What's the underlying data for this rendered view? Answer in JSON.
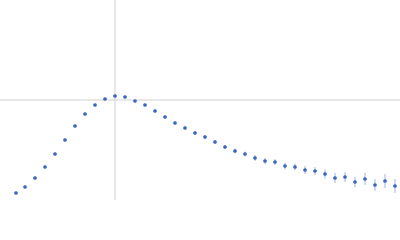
{
  "chart_data": {
    "type": "scatter",
    "x": [
      0.16,
      0.25,
      0.35,
      0.45,
      0.55,
      0.65,
      0.75,
      0.85,
      0.95,
      1.05,
      1.15,
      1.25,
      1.35,
      1.45,
      1.55,
      1.65,
      1.75,
      1.85,
      1.95,
      2.05,
      2.15,
      2.25,
      2.35,
      2.45,
      2.55,
      2.65,
      2.75,
      2.85,
      2.95,
      3.05,
      3.15,
      3.25,
      3.35,
      3.45,
      3.55,
      3.65,
      3.75,
      3.85,
      3.95
    ],
    "values": [
      0.07,
      0.13,
      0.22,
      0.33,
      0.46,
      0.6,
      0.74,
      0.86,
      0.95,
      1.01,
      1.04,
      1.03,
      0.99,
      0.95,
      0.89,
      0.83,
      0.77,
      0.72,
      0.67,
      0.63,
      0.58,
      0.53,
      0.49,
      0.46,
      0.42,
      0.39,
      0.38,
      0.34,
      0.33,
      0.3,
      0.29,
      0.26,
      0.22,
      0.23,
      0.18,
      0.21,
      0.15,
      0.19,
      0.14
    ],
    "errors": [
      0.005,
      0.005,
      0.005,
      0.005,
      0.005,
      0.005,
      0.005,
      0.005,
      0.005,
      0.005,
      0.01,
      0.01,
      0.01,
      0.01,
      0.01,
      0.015,
      0.015,
      0.015,
      0.02,
      0.02,
      0.02,
      0.02,
      0.025,
      0.025,
      0.03,
      0.03,
      0.03,
      0.035,
      0.035,
      0.04,
      0.04,
      0.045,
      0.05,
      0.05,
      0.05,
      0.06,
      0.06,
      0.07,
      0.07
    ],
    "color": "#3a66c0",
    "xlim": [
      0,
      4
    ],
    "ylim": [
      0,
      2
    ],
    "xticks": [
      1.15
    ],
    "yticks": [
      1
    ],
    "grid": true
  }
}
